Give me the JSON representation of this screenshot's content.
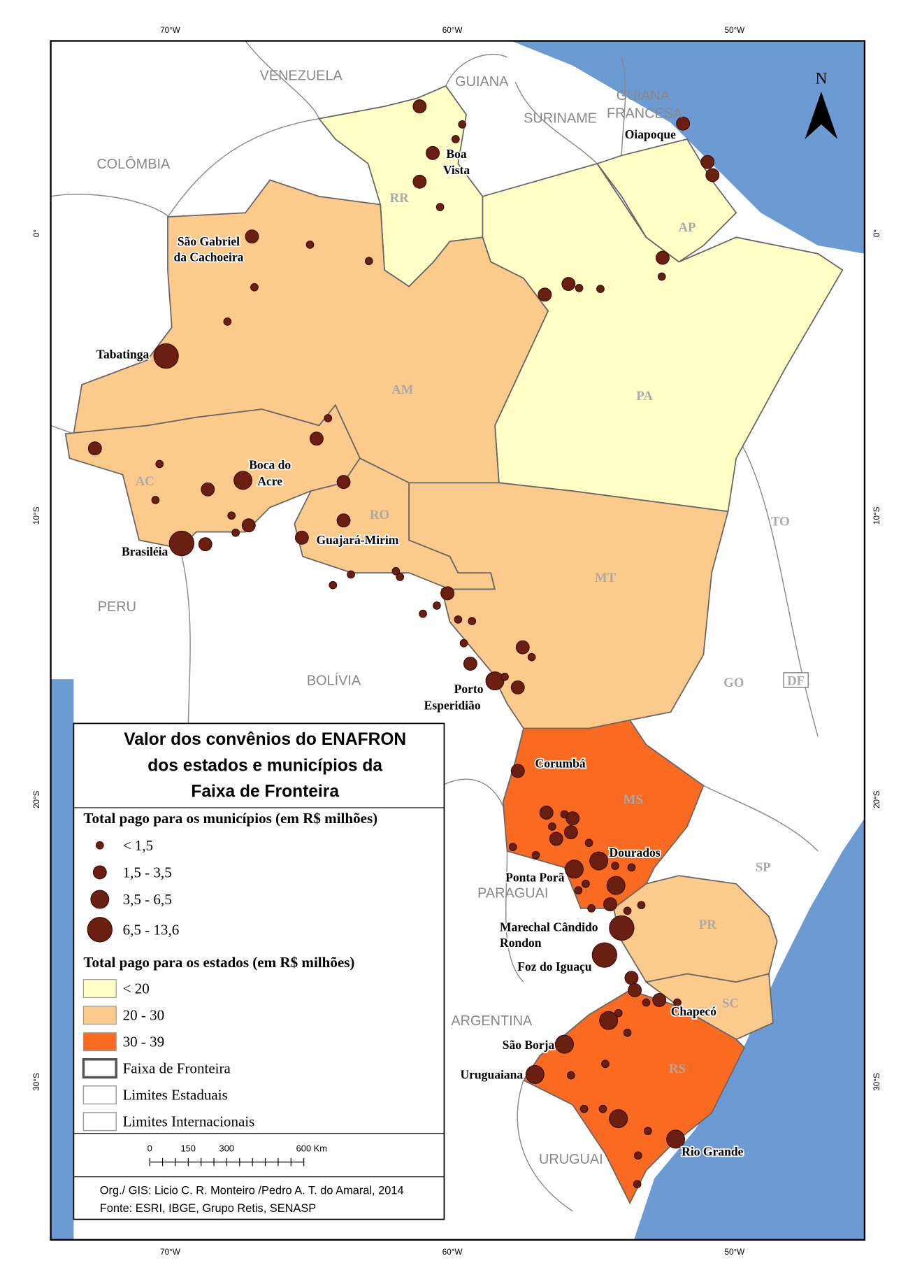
{
  "title": [
    "Valor dos convênios do ENAFRON",
    "dos estados e municípios da",
    "Faixa de Fronteira"
  ],
  "north": "N",
  "axes": {
    "top": [
      "70°W",
      "60°W",
      "50°W"
    ],
    "side": [
      "0°",
      "10°S",
      "20°S",
      "30°S"
    ]
  },
  "legend": {
    "municipal_heading": "Total pago para os municípios (em R$ milhões)",
    "municipal_classes": [
      "< 1,5",
      "1,5 - 3,5",
      "3,5 - 6,5",
      "6,5 - 13,6"
    ],
    "state_heading": "Total pago para os estados (em R$ milhões)",
    "state_classes": [
      {
        "label": "< 20",
        "color": "#ffffc6"
      },
      {
        "label": "20 - 30",
        "color": "#fcca8a"
      },
      {
        "label": "30 - 39",
        "color": "#fa6a20"
      }
    ],
    "lines": [
      "Faixa de Fronteira",
      "Limites Estaduais",
      "Limites Internacionais"
    ]
  },
  "scale": [
    "0",
    "150",
    "300",
    "600 Km"
  ],
  "credits": [
    "Org./ GIS: Licio C. R. Monteiro /Pedro A. T. do Amaral, 2014",
    "Fonte: ESRI, IBGE, Grupo Retis, SENASP"
  ],
  "countries": [
    [
      "VENEZUELA"
    ],
    [
      "GUIANA"
    ],
    [
      "SURINAME"
    ],
    [
      "GUIANA",
      "FRANCESA"
    ],
    [
      "COLÔMBIA"
    ],
    [
      "PERU"
    ],
    [
      "BOLÍVIA"
    ],
    [
      "PARAGUAI"
    ],
    [
      "ARGENTINA"
    ],
    [
      "URUGUAI"
    ]
  ],
  "states": [
    "RR",
    "AP",
    "AM",
    "PA",
    "AC",
    "RO",
    "MT",
    "TO",
    "GO",
    "DF",
    "MS",
    "SP",
    "PR",
    "SC",
    "RS"
  ],
  "cities": [
    [
      "Oiapoque"
    ],
    [
      "Boa",
      "Vista"
    ],
    [
      "São Gabriel",
      "da Cachoeira"
    ],
    [
      "Tabatinga"
    ],
    [
      "Boca do",
      "Acre"
    ],
    [
      "Brasiléia"
    ],
    [
      "Guajará-Mirim"
    ],
    [
      "Porto",
      "Esperidião"
    ],
    [
      "Corumbá"
    ],
    [
      "Dourados"
    ],
    [
      "Ponta Porã"
    ],
    [
      "Marechal Cândido",
      "Rondon"
    ],
    [
      "Foz do Iguaçu"
    ],
    [
      "Chapecó"
    ],
    [
      "São Borja"
    ],
    [
      "Uruguaiana"
    ],
    [
      "Rio Grande"
    ]
  ]
}
